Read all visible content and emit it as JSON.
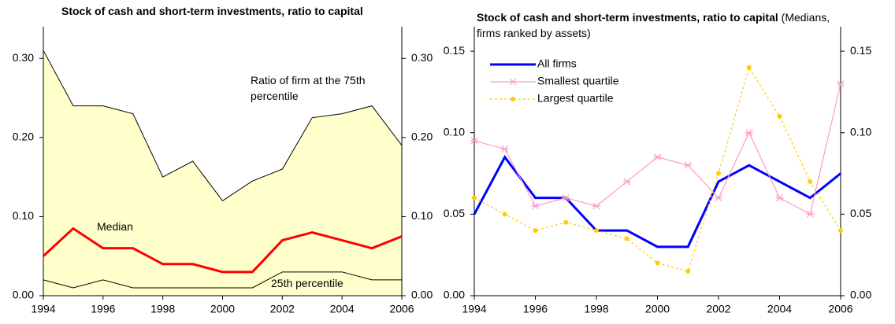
{
  "chart_data": [
    {
      "type": "area_line",
      "title": "Stock of cash and short-term investments, ratio to capital",
      "x": [
        1994,
        1995,
        1996,
        1997,
        1998,
        1999,
        2000,
        2001,
        2002,
        2003,
        2004,
        2005,
        2006
      ],
      "xlim": [
        1994,
        2006
      ],
      "xticks": [
        1994,
        1996,
        1998,
        2000,
        2002,
        2004,
        2006
      ],
      "ylim": [
        0,
        0.34
      ],
      "yticks": [
        {
          "value": 0,
          "label": "0.00"
        },
        {
          "value": 0.1,
          "label": "0.10"
        },
        {
          "value": 0.2,
          "label": "0.20"
        },
        {
          "value": 0.3,
          "label": "0.30"
        }
      ],
      "fill_color": "#ffffcc",
      "series": [
        {
          "name": "Ratio of firm at the 75th percentile",
          "color": "#000000",
          "values": [
            0.31,
            0.24,
            0.24,
            0.23,
            0.15,
            0.17,
            0.12,
            0.145,
            0.16,
            0.225,
            0.23,
            0.24,
            0.19
          ]
        },
        {
          "name": "Median",
          "color": "#ff0000",
          "values": [
            0.05,
            0.085,
            0.06,
            0.06,
            0.04,
            0.04,
            0.03,
            0.03,
            0.07,
            0.08,
            0.07,
            0.06,
            0.075
          ]
        },
        {
          "name": "25th percentile",
          "color": "#000000",
          "values": [
            0.02,
            0.01,
            0.02,
            0.01,
            0.01,
            0.01,
            0.01,
            0.01,
            0.03,
            0.03,
            0.03,
            0.02,
            0.02
          ]
        }
      ]
    },
    {
      "type": "line",
      "title": "Stock of cash and short-term investments, ratio to capital",
      "subtitle": "(Medians, firms ranked by assets)",
      "x": [
        1994,
        1995,
        1996,
        1997,
        1998,
        1999,
        2000,
        2001,
        2002,
        2003,
        2004,
        2005,
        2006
      ],
      "xlim": [
        1994,
        2006
      ],
      "xticks": [
        1994,
        1996,
        1998,
        2000,
        2002,
        2004,
        2006
      ],
      "ylim": [
        0,
        0.165
      ],
      "yticks": [
        {
          "value": 0,
          "label": "0.00"
        },
        {
          "value": 0.05,
          "label": "0.05"
        },
        {
          "value": 0.1,
          "label": "0.10"
        },
        {
          "value": 0.15,
          "label": "0.15"
        }
      ],
      "legend": "upper left",
      "series": [
        {
          "name": "All firms",
          "color": "#0000ff",
          "values": [
            0.05,
            0.085,
            0.06,
            0.06,
            0.04,
            0.04,
            0.03,
            0.03,
            0.07,
            0.08,
            0.07,
            0.06,
            0.075
          ]
        },
        {
          "name": "Smallest quartile",
          "color": "#ff99cc",
          "marker": "asterisk",
          "values": [
            0.095,
            0.09,
            0.055,
            0.06,
            0.055,
            0.07,
            0.085,
            0.08,
            0.06,
            0.1,
            0.06,
            0.05,
            0.13
          ]
        },
        {
          "name": "Largest quartile",
          "color": "#ffcc00",
          "marker": "dot",
          "dash": true,
          "values": [
            0.06,
            0.05,
            0.04,
            0.045,
            0.04,
            0.035,
            0.02,
            0.015,
            0.075,
            0.14,
            0.11,
            0.07,
            0.04
          ]
        }
      ]
    }
  ]
}
